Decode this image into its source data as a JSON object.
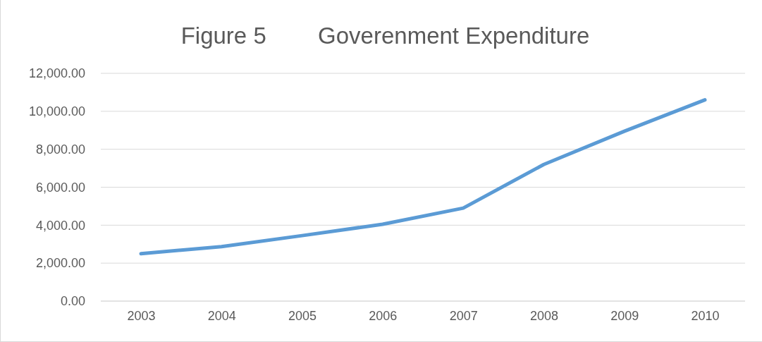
{
  "chart_data": {
    "type": "line",
    "title": "Figure 5        Goverenment Expenditure",
    "categories": [
      "2003",
      "2004",
      "2005",
      "2006",
      "2007",
      "2008",
      "2009",
      "2010"
    ],
    "series": [
      {
        "color": "#5b9bd5",
        "values": [
          2500,
          2870,
          3450,
          4050,
          4900,
          7200,
          8950,
          10600
        ]
      }
    ],
    "ylim": [
      0,
      12000
    ],
    "yticks": [
      {
        "value": 0,
        "label": "0.00"
      },
      {
        "value": 2000,
        "label": "2,000.00"
      },
      {
        "value": 4000,
        "label": "4,000.00"
      },
      {
        "value": 6000,
        "label": "6,000.00"
      },
      {
        "value": 8000,
        "label": "8,000.00"
      },
      {
        "value": 10000,
        "label": "10,000.00"
      },
      {
        "value": 12000,
        "label": "12,000.00"
      }
    ],
    "grid": "y",
    "marker": "none",
    "line_style": "solid"
  }
}
